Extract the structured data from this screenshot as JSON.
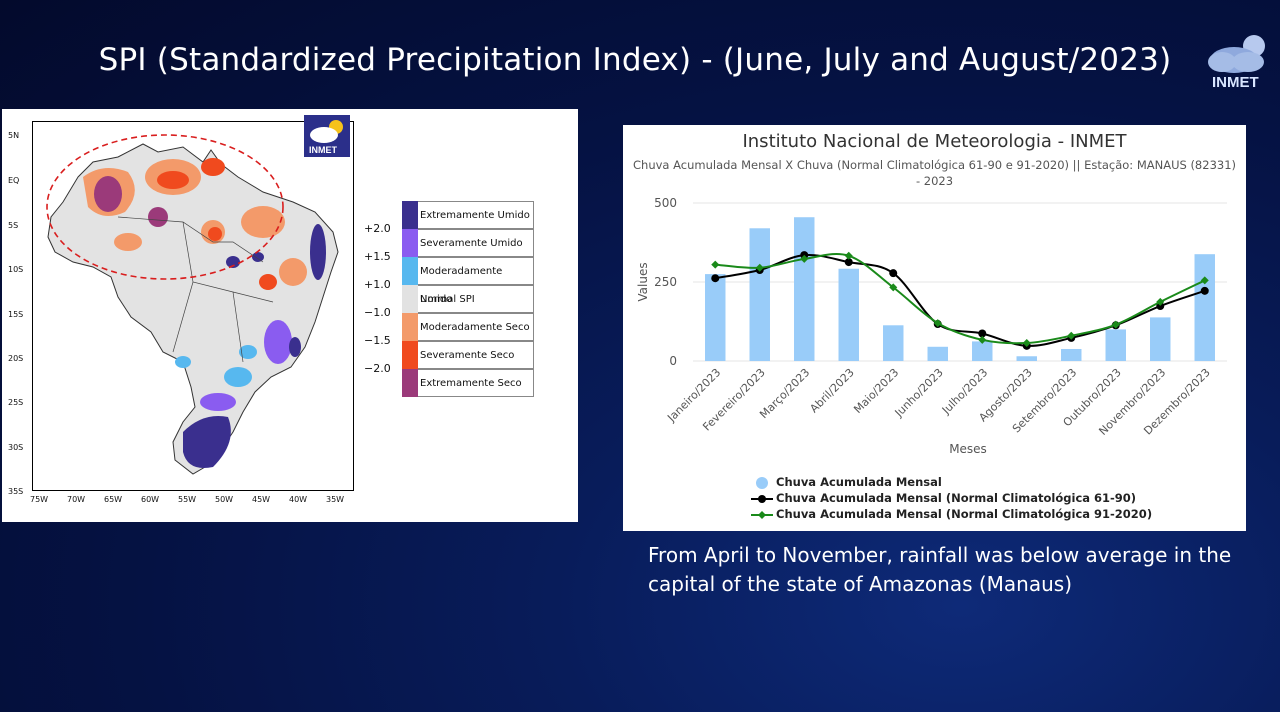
{
  "slide": {
    "title": "SPI (Standardized Precipitation Index) -  (June, July and August/2023)",
    "logo_text": "INMET",
    "caption": "From April to November, rainfall was below average in the capital of the state of Amazonas (Manaus)"
  },
  "map": {
    "logo_text": "INMET",
    "lat_labels": [
      "5N",
      "EQ",
      "5S",
      "10S",
      "15S",
      "20S",
      "25S",
      "30S",
      "35S"
    ],
    "lon_labels": [
      "75W",
      "70W",
      "65W",
      "60W",
      "55W",
      "50W",
      "45W",
      "40W",
      "35W"
    ],
    "legend": [
      {
        "label": "Extremamente Umido",
        "color": "#3a2f8e"
      },
      {
        "label": "Severamente Umido",
        "color": "#8a5cf0"
      },
      {
        "label": "Moderadamente Umido",
        "color": "#57b8ef"
      },
      {
        "label": "Normal SPI",
        "color": "#e2e2e2"
      },
      {
        "label": "Moderadamente Seco",
        "color": "#f39a6a"
      },
      {
        "label": "Severamente Seco",
        "color": "#f04a1e"
      },
      {
        "label": "Extremamente Seco",
        "color": "#9b3a7a"
      }
    ],
    "legend_ticks": [
      "+2.0",
      "+1.5",
      "+1.0",
      "−1.0",
      "−1.5",
      "−2.0"
    ]
  },
  "chart_data": {
    "type": "bar",
    "title": "Instituto Nacional de Meteorologia - INMET",
    "subtitle": "Chuva Acumulada Mensal X Chuva (Normal Climatológica 61-90 e 91-2020) || Estação: MANAUS (82331) - 2023",
    "xlabel": "Meses",
    "ylabel": "Values",
    "ylim": [
      0,
      500
    ],
    "yticks": [
      0,
      250,
      500
    ],
    "categories": [
      "Janeiro/2023",
      "Fevereiro/2023",
      "Março/2023",
      "Abril/2023",
      "Maio/2023",
      "Junho/2023",
      "Julho/2023",
      "Agosto/2023",
      "Setembro/2023",
      "Outubro/2023",
      "Novembro/2023",
      "Dezembro/2023"
    ],
    "series": [
      {
        "name": "Chuva Acumulada Mensal",
        "kind": "bar",
        "color": "#99ccf9",
        "values": [
          275,
          420,
          455,
          292,
          113,
          45,
          62,
          15,
          38,
          100,
          138,
          338
        ]
      },
      {
        "name": "Chuva Acumulada Mensal (Normal Climatológica 61-90)",
        "kind": "line",
        "color": "#000000",
        "values": [
          262,
          288,
          335,
          313,
          278,
          117,
          87,
          48,
          73,
          113,
          174,
          222
        ]
      },
      {
        "name": "Chuva Acumulada Mensal (Normal Climatológica 91-2020)",
        "kind": "line",
        "color": "#1a8a1a",
        "values": [
          305,
          295,
          323,
          333,
          233,
          120,
          67,
          57,
          80,
          115,
          187,
          255
        ]
      }
    ],
    "grid": true,
    "legend_position": "bottom"
  }
}
